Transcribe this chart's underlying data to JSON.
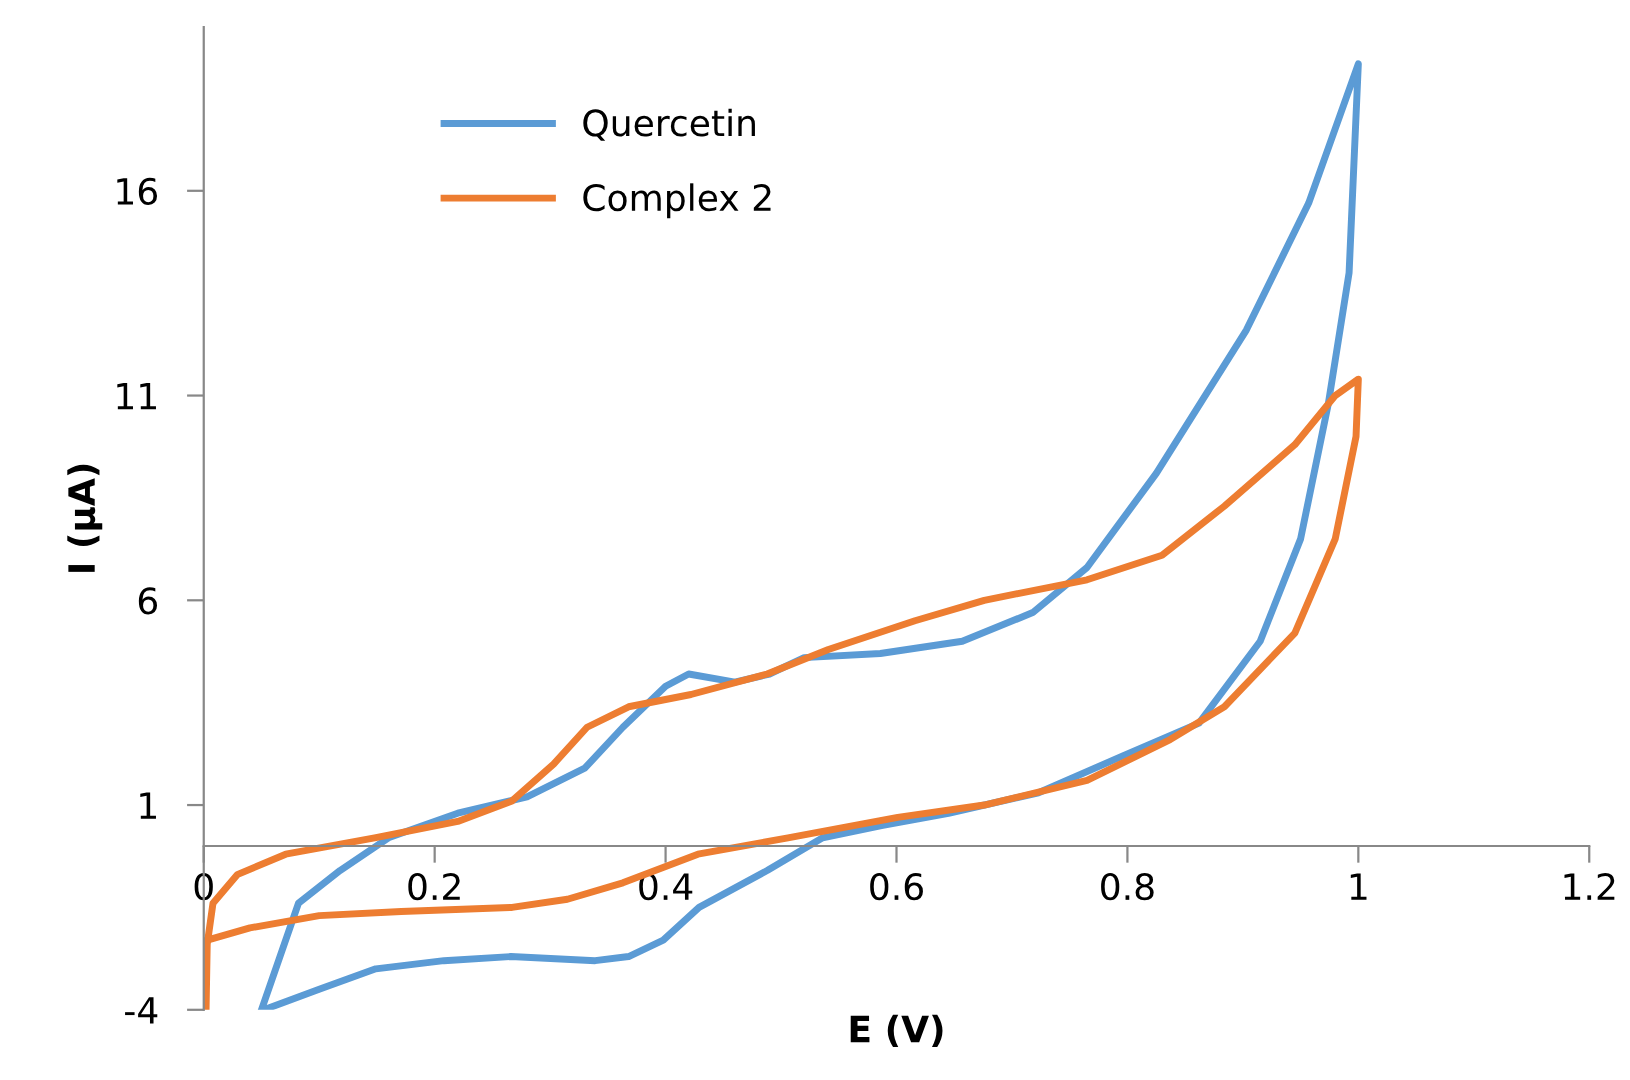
{
  "chart_data": {
    "type": "line",
    "xlabel": "E (V)",
    "ylabel": "I (μA)",
    "xlim": [
      0,
      1.2
    ],
    "xticks": [
      0,
      0.2,
      0.4,
      0.6,
      0.8,
      1,
      1.2
    ],
    "ylim": [
      -4,
      20
    ],
    "yticks": [
      -4,
      1,
      6,
      11,
      16
    ],
    "grid": false,
    "legend": "top left",
    "marker": "none",
    "line_style": "solid",
    "series": [
      {
        "name": "Quercetin",
        "color": "#5b9bd5",
        "x": [
          0.05,
          0.082,
          0.118,
          0.16,
          0.22,
          0.28,
          0.33,
          0.363,
          0.4,
          0.42,
          0.46,
          0.49,
          0.52,
          0.586,
          0.657,
          0.718,
          0.765,
          0.825,
          0.903,
          0.957,
          1.0,
          0.992,
          0.974,
          0.95,
          0.915,
          0.862,
          0.796,
          0.723,
          0.645,
          0.587,
          0.536,
          0.488,
          0.429,
          0.398,
          0.368,
          0.339,
          0.266,
          0.208,
          0.149,
          0.1,
          0.052
        ],
        "values": [
          -4,
          -1.4,
          -0.6,
          0.2,
          0.8,
          1.2,
          1.9,
          2.9,
          3.9,
          4.2,
          4.0,
          4.2,
          4.6,
          4.7,
          5.0,
          5.7,
          6.8,
          9.1,
          12.6,
          15.7,
          19.1,
          14.0,
          10.8,
          7.5,
          5.0,
          3.0,
          2.2,
          1.3,
          0.8,
          0.5,
          0.2,
          -0.6,
          -1.5,
          -2.3,
          -2.7,
          -2.8,
          -2.7,
          -2.8,
          -3.0,
          -3.5,
          -4
        ]
      },
      {
        "name": "Complex 2",
        "color": "#ed7d31",
        "x": [
          0.003,
          0.04,
          0.1,
          0.171,
          0.267,
          0.315,
          0.363,
          0.428,
          0.506,
          0.601,
          0.676,
          0.765,
          0.837,
          0.884,
          0.945,
          0.98,
          0.998,
          1.0,
          0.98,
          0.945,
          0.884,
          0.83,
          0.765,
          0.676,
          0.616,
          0.541,
          0.488,
          0.422,
          0.368,
          0.332,
          0.303,
          0.267,
          0.22,
          0.148,
          0.071,
          0.029,
          0.008,
          0.003,
          0.002
        ],
        "values": [
          -2.3,
          -2.0,
          -1.7,
          -1.6,
          -1.5,
          -1.3,
          -0.9,
          -0.2,
          0.2,
          0.7,
          1.0,
          1.6,
          2.6,
          3.4,
          5.2,
          7.5,
          10.0,
          11.4,
          11.0,
          9.8,
          8.3,
          7.1,
          6.5,
          6.0,
          5.5,
          4.8,
          4.2,
          3.7,
          3.4,
          2.9,
          2.0,
          1.1,
          0.6,
          0.2,
          -0.2,
          -0.7,
          -1.4,
          -2.4,
          -4
        ]
      }
    ]
  }
}
